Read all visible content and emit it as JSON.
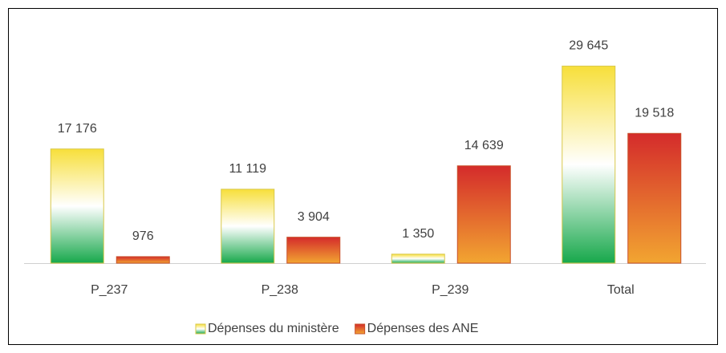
{
  "chart_data": {
    "type": "bar",
    "categories": [
      "P_237",
      "P_238",
      "P_239",
      "Total"
    ],
    "series": [
      {
        "name": "Dépenses du ministère",
        "colors": [
          "#f7df3a",
          "#ffffff",
          "#17a84b"
        ],
        "values": [
          17176,
          11119,
          1350,
          29645
        ],
        "value_labels": [
          "17 176",
          "11 119",
          "1 350",
          "29 645"
        ]
      },
      {
        "name": "Dépenses des ANE",
        "colors": [
          "#d42b2b",
          "#f2a531"
        ],
        "values": [
          976,
          3904,
          14639,
          19518
        ],
        "value_labels": [
          "976",
          "3 904",
          "14 639",
          "19 518"
        ]
      }
    ],
    "ylim": [
      0,
      35000
    ],
    "legend": "bottom"
  }
}
